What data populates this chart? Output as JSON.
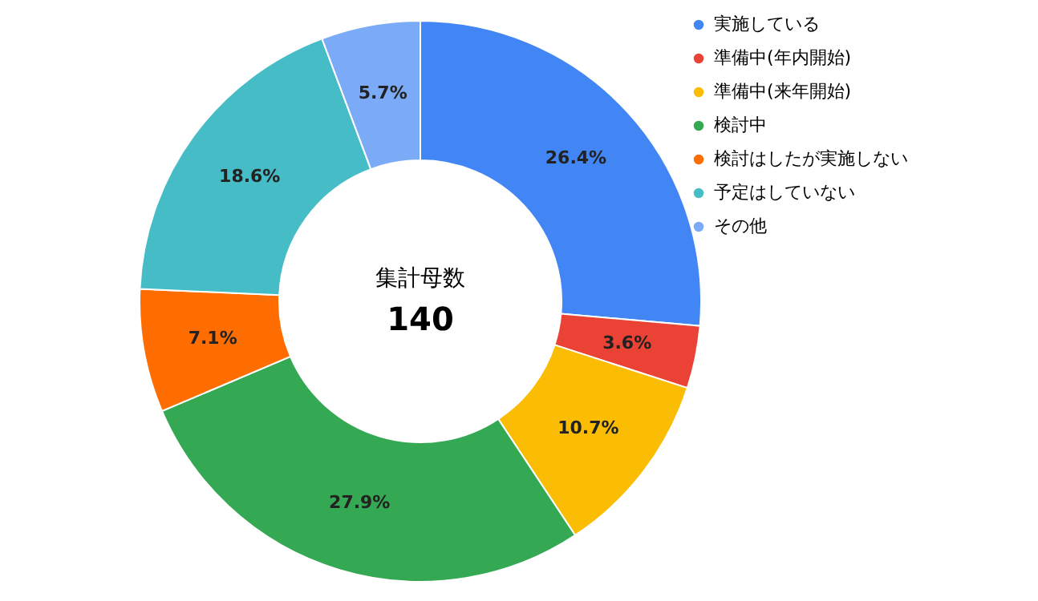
{
  "chart_data": {
    "type": "donut",
    "categories": [
      "実施している",
      "準備中(年内開始)",
      "準備中(来年開始)",
      "検討中",
      "検討はしたが実施しない",
      "予定はしていない",
      "その他"
    ],
    "values": [
      26.4,
      3.6,
      10.7,
      27.9,
      7.1,
      18.6,
      5.7
    ],
    "value_labels": [
      "26.4%",
      "3.6%",
      "10.7%",
      "27.9%",
      "7.1%",
      "18.6%",
      "5.7%"
    ],
    "colors": [
      "#4285f4",
      "#ea4335",
      "#fbbc04",
      "#34a853",
      "#ff6d01",
      "#46bdc6",
      "#7baaf7"
    ],
    "annotations": [
      "集計母数",
      "140"
    ],
    "legend": "right"
  }
}
